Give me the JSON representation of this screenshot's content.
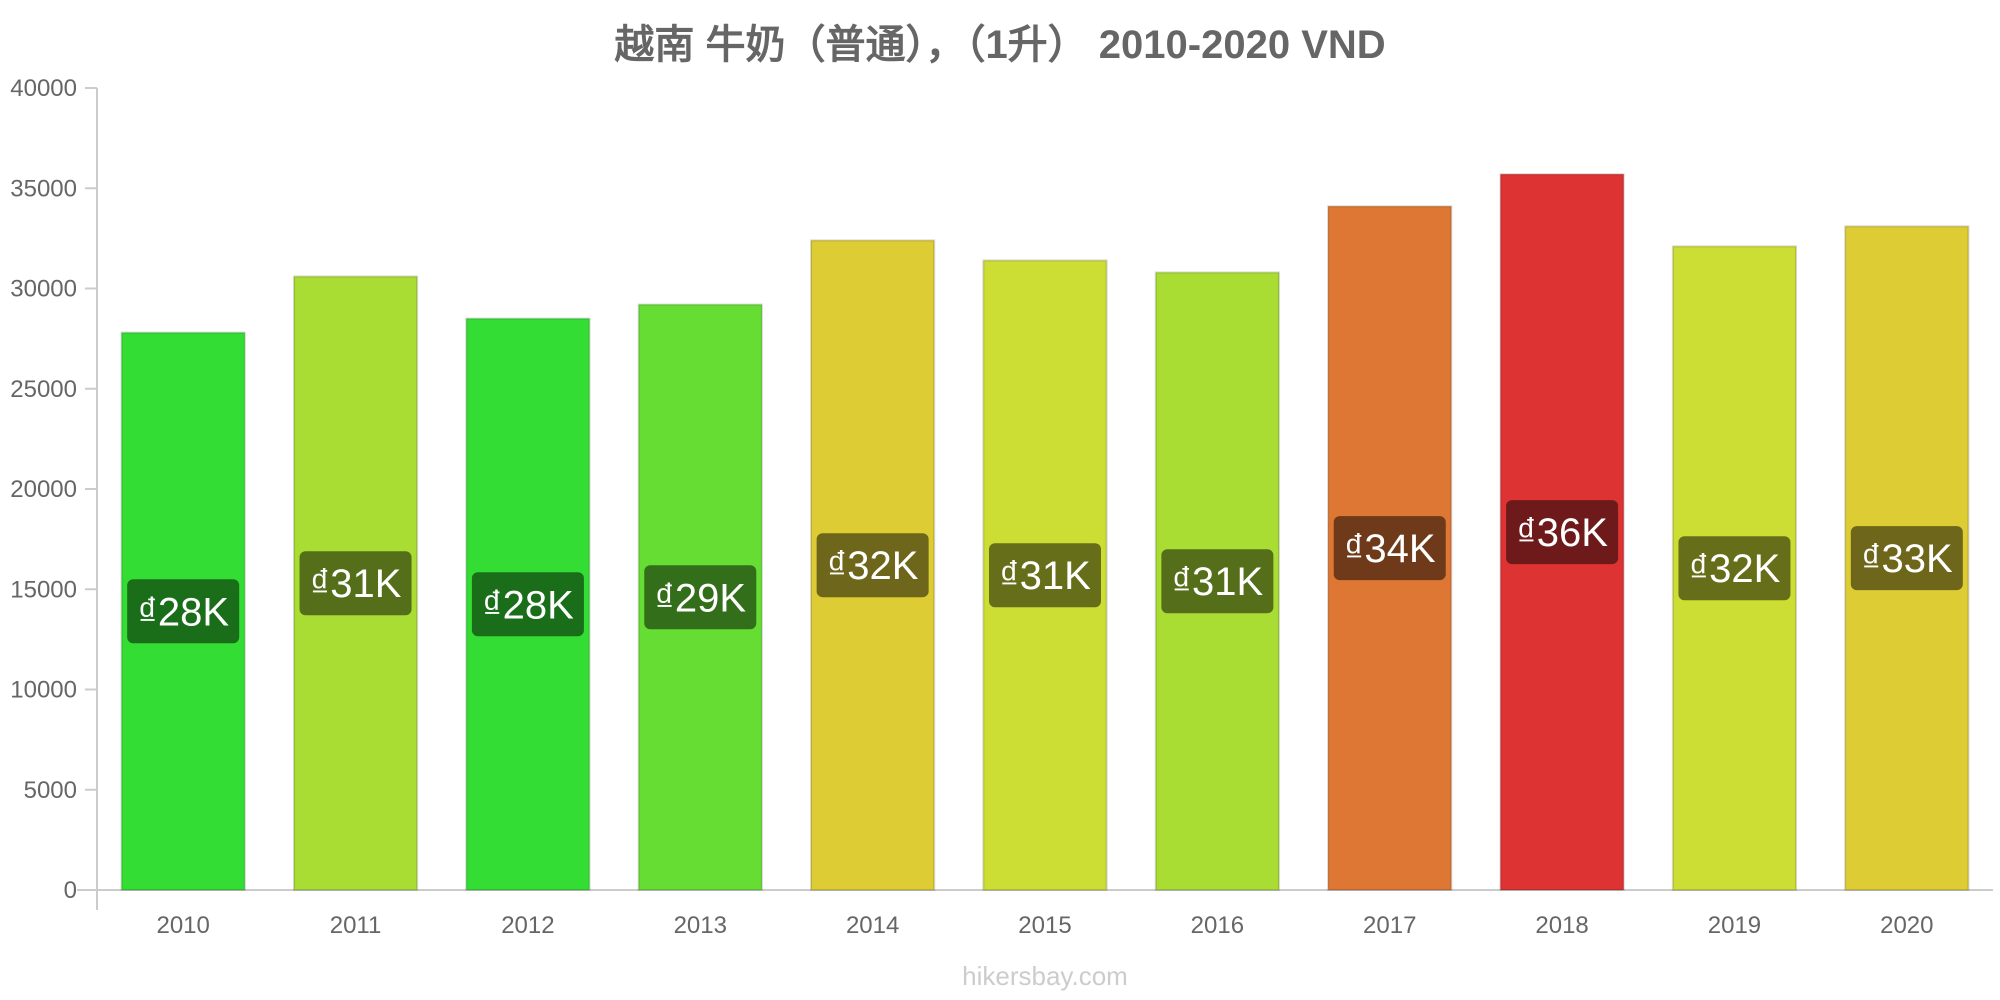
{
  "chart_data": {
    "type": "bar",
    "title": "越南 牛奶（普通），（1升） 2010-2020 VND",
    "xlabel": "",
    "ylabel": "",
    "categories": [
      "2010",
      "2011",
      "2012",
      "2013",
      "2014",
      "2015",
      "2016",
      "2017",
      "2018",
      "2019",
      "2020"
    ],
    "values": [
      27800,
      30600,
      28500,
      29200,
      32400,
      31400,
      30800,
      34100,
      35700,
      32100,
      33100
    ],
    "data_labels": [
      "₫28K",
      "₫31K",
      "₫28K",
      "₫29K",
      "₫32K",
      "₫31K",
      "₫31K",
      "₫34K",
      "₫36K",
      "₫32K",
      "₫33K"
    ],
    "bar_colors": [
      "#33dd33",
      "#aadd33",
      "#33dd33",
      "#66dd33",
      "#ddcc33",
      "#ccdd33",
      "#aadd33",
      "#dd7733",
      "#dd3333",
      "#ccdd33",
      "#ddcc33"
    ],
    "label_bg_colors": [
      "#1a6e1a",
      "#556e1a",
      "#1a6e1a",
      "#336e1a",
      "#6e661a",
      "#666e1a",
      "#556e1a",
      "#6e3a1a",
      "#6e1a1a",
      "#666e1a",
      "#6e661a"
    ],
    "ylim": [
      0,
      40000
    ],
    "yticks": [
      0,
      5000,
      10000,
      15000,
      20000,
      25000,
      30000,
      35000,
      40000
    ],
    "grid": false,
    "legend": "none"
  },
  "watermark": "hikersbay.com"
}
